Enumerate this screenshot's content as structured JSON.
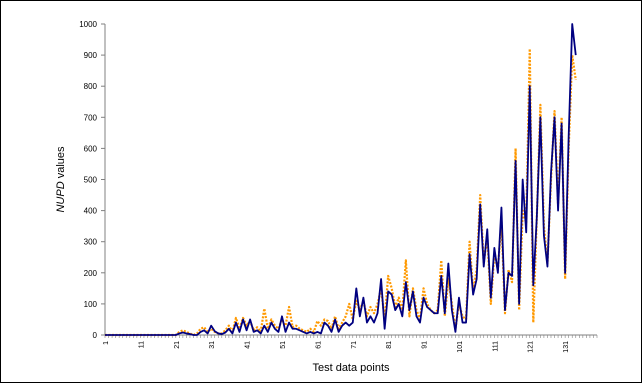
{
  "chart_data": {
    "type": "line",
    "title": "",
    "xlabel": "Test data points",
    "ylabel_italic": "NUPD",
    "ylabel_rest": " values",
    "ylim": [
      0,
      1000
    ],
    "yticks": [
      0,
      100,
      200,
      300,
      400,
      500,
      600,
      700,
      800,
      900,
      1000
    ],
    "xlim": [
      1,
      140
    ],
    "xticks": [
      1,
      11,
      21,
      31,
      41,
      51,
      61,
      71,
      81,
      91,
      101,
      111,
      121,
      131
    ],
    "grid": false,
    "legend": "none",
    "series": [
      {
        "color": "#000080",
        "style": "solid",
        "values": [
          0,
          0,
          0,
          0,
          0,
          0,
          0,
          0,
          0,
          0,
          0,
          0,
          0,
          0,
          0,
          0,
          0,
          0,
          0,
          0,
          0,
          5,
          8,
          5,
          3,
          0,
          0,
          10,
          15,
          5,
          30,
          12,
          5,
          3,
          8,
          20,
          5,
          40,
          10,
          50,
          15,
          50,
          10,
          15,
          5,
          30,
          10,
          40,
          20,
          10,
          60,
          10,
          40,
          20,
          20,
          15,
          10,
          5,
          10,
          5,
          10,
          5,
          40,
          30,
          10,
          50,
          10,
          30,
          40,
          30,
          40,
          150,
          60,
          120,
          40,
          60,
          40,
          70,
          180,
          20,
          140,
          130,
          80,
          100,
          60,
          170,
          80,
          140,
          60,
          40,
          120,
          90,
          80,
          70,
          70,
          190,
          70,
          230,
          80,
          10,
          120,
          40,
          40,
          260,
          130,
          180,
          420,
          220,
          340,
          120,
          280,
          200,
          410,
          80,
          200,
          190,
          560,
          100,
          500,
          330,
          800,
          160,
          380,
          700,
          320,
          220,
          520,
          700,
          400,
          680,
          200,
          640,
          1000,
          900
        ],
        "x_start": 1
      },
      {
        "color": "#FF9900",
        "style": "dotted",
        "values": [
          0,
          0,
          0,
          0,
          0,
          0,
          0,
          0,
          0,
          0,
          0,
          0,
          0,
          0,
          0,
          0,
          0,
          0,
          0,
          0,
          0,
          10,
          15,
          10,
          5,
          0,
          5,
          20,
          25,
          10,
          20,
          10,
          5,
          5,
          15,
          30,
          10,
          55,
          20,
          55,
          30,
          45,
          15,
          25,
          10,
          85,
          20,
          50,
          30,
          20,
          50,
          30,
          90,
          25,
          30,
          20,
          15,
          10,
          20,
          10,
          45,
          30,
          50,
          45,
          20,
          60,
          20,
          40,
          60,
          100,
          50,
          110,
          80,
          110,
          60,
          90,
          70,
          100,
          150,
          50,
          190,
          150,
          90,
          120,
          80,
          240,
          60,
          150,
          80,
          50,
          150,
          100,
          80,
          70,
          80,
          240,
          60,
          180,
          100,
          20,
          100,
          60,
          50,
          300,
          140,
          210,
          450,
          230,
          320,
          100,
          260,
          210,
          370,
          70,
          210,
          170,
          600,
          80,
          400,
          360,
          920,
          40,
          380,
          740,
          350,
          230,
          500,
          720,
          420,
          700,
          180,
          600,
          900,
          820
        ],
        "x_start": 1
      }
    ]
  }
}
